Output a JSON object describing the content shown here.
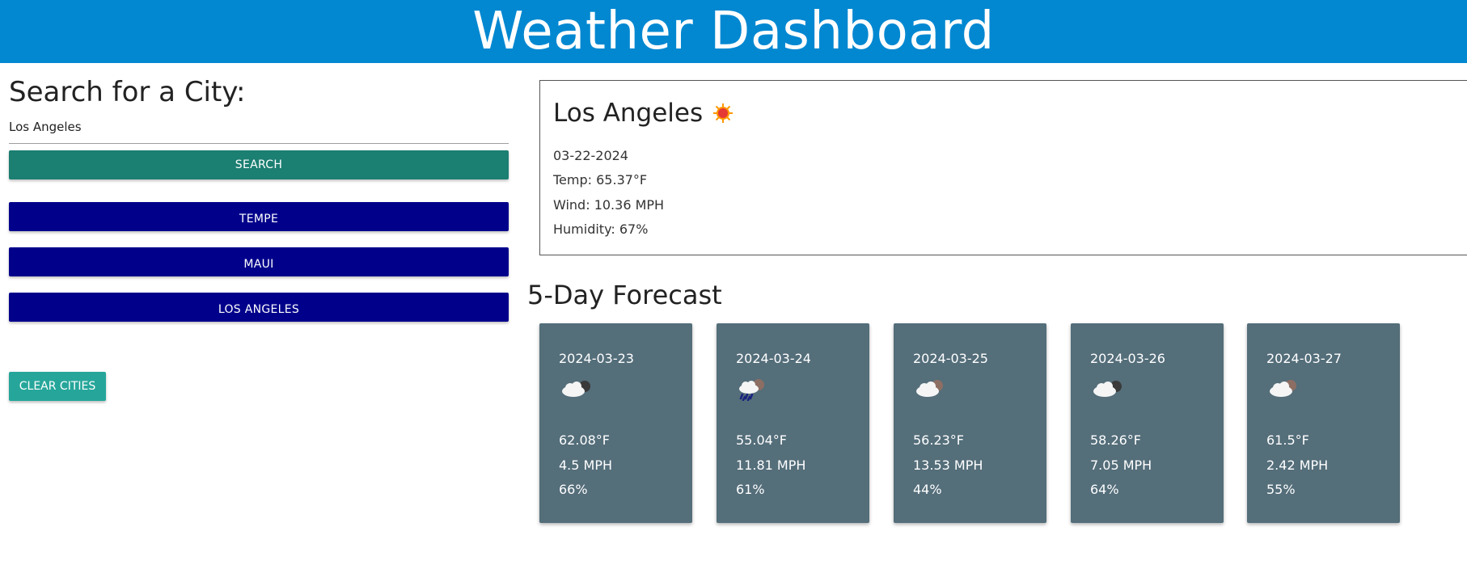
{
  "header": {
    "title": "Weather Dashboard"
  },
  "search": {
    "title": "Search for a City:",
    "input_value": "Los Angeles",
    "button_label": "Search"
  },
  "history": [
    {
      "label": "Tempe"
    },
    {
      "label": "Maui"
    },
    {
      "label": "Los Angeles"
    }
  ],
  "clear_label": "Clear Cities",
  "current": {
    "city": "Los Angeles",
    "icon": "sun-icon",
    "date": "03-22-2024",
    "temp": "Temp: 65.37°F",
    "wind": "Wind: 10.36 MPH",
    "humidity": "Humidity: 67%"
  },
  "forecast": {
    "title": "5-Day Forecast",
    "days": [
      {
        "date": "2024-03-23",
        "icon": "night-cloud-icon",
        "temp": "62.08°F",
        "wind": "4.5 MPH",
        "humidity": "66%"
      },
      {
        "date": "2024-03-24",
        "icon": "rain-cloud-icon",
        "temp": "55.04°F",
        "wind": "11.81 MPH",
        "humidity": "61%"
      },
      {
        "date": "2024-03-25",
        "icon": "broken-clouds-icon",
        "temp": "56.23°F",
        "wind": "13.53 MPH",
        "humidity": "44%"
      },
      {
        "date": "2024-03-26",
        "icon": "night-cloud-icon",
        "temp": "58.26°F",
        "wind": "7.05 MPH",
        "humidity": "64%"
      },
      {
        "date": "2024-03-27",
        "icon": "broken-clouds-icon",
        "temp": "61.5°F",
        "wind": "2.42 MPH",
        "humidity": "55%"
      }
    ]
  },
  "colors": {
    "header": "#0288d1",
    "search_button": "#1b7f72",
    "history_button": "#00008b",
    "clear_button": "#26a69a",
    "card": "#546e7a"
  }
}
